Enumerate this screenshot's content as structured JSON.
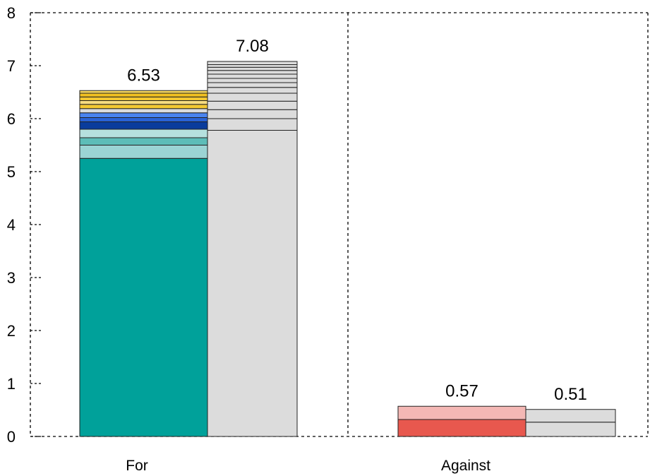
{
  "chart_data": {
    "type": "bar",
    "stacked": true,
    "ylim": [
      0,
      8
    ],
    "yticks": [
      0,
      1,
      2,
      3,
      4,
      5,
      6,
      7,
      8
    ],
    "grid": "dashed frame with dashed divider between categories",
    "legend": "none",
    "groups": [
      {
        "category": "For",
        "bars": [
          {
            "total_label": "6.53",
            "segments": [
              {
                "value": 5.25,
                "color": "#00A19A"
              },
              {
                "value": 0.25,
                "color": "#9BD4D4"
              },
              {
                "value": 0.14,
                "color": "#5DBDB8"
              },
              {
                "value": 0.16,
                "color": "#B5E0DE"
              },
              {
                "value": 0.14,
                "color": "#0A3C9C"
              },
              {
                "value": 0.08,
                "color": "#2A63D6"
              },
              {
                "value": 0.09,
                "color": "#4A84F0"
              },
              {
                "value": 0.08,
                "color": "#DCDCDC"
              },
              {
                "value": 0.08,
                "color": "#F3C832"
              },
              {
                "value": 0.07,
                "color": "#F7DC80"
              },
              {
                "value": 0.07,
                "color": "#F3C832"
              },
              {
                "value": 0.07,
                "color": "#F0C020"
              },
              {
                "value": 0.05,
                "color": "#F7D860"
              }
            ]
          },
          {
            "total_label": "7.08",
            "segments": [
              {
                "value": 5.78,
                "color": "#DCDCDC"
              },
              {
                "value": 0.22,
                "color": "#DCDCDC"
              },
              {
                "value": 0.17,
                "color": "#DCDCDC"
              },
              {
                "value": 0.16,
                "color": "#DCDCDC"
              },
              {
                "value": 0.15,
                "color": "#DCDCDC"
              },
              {
                "value": 0.11,
                "color": "#DCDCDC"
              },
              {
                "value": 0.09,
                "color": "#DCDCDC"
              },
              {
                "value": 0.08,
                "color": "#DCDCDC"
              },
              {
                "value": 0.08,
                "color": "#DCDCDC"
              },
              {
                "value": 0.07,
                "color": "#DCDCDC"
              },
              {
                "value": 0.06,
                "color": "#DCDCDC"
              },
              {
                "value": 0.05,
                "color": "#DCDCDC"
              },
              {
                "value": 0.06,
                "color": "#DCDCDC"
              }
            ]
          }
        ]
      },
      {
        "category": "Against",
        "bars": [
          {
            "total_label": "0.57",
            "segments": [
              {
                "value": 0.32,
                "color": "#E8584E"
              },
              {
                "value": 0.25,
                "color": "#F4B8B5"
              }
            ]
          },
          {
            "total_label": "0.51",
            "segments": [
              {
                "value": 0.27,
                "color": "#DCDCDC"
              },
              {
                "value": 0.24,
                "color": "#DCDCDC"
              }
            ]
          }
        ]
      }
    ]
  }
}
